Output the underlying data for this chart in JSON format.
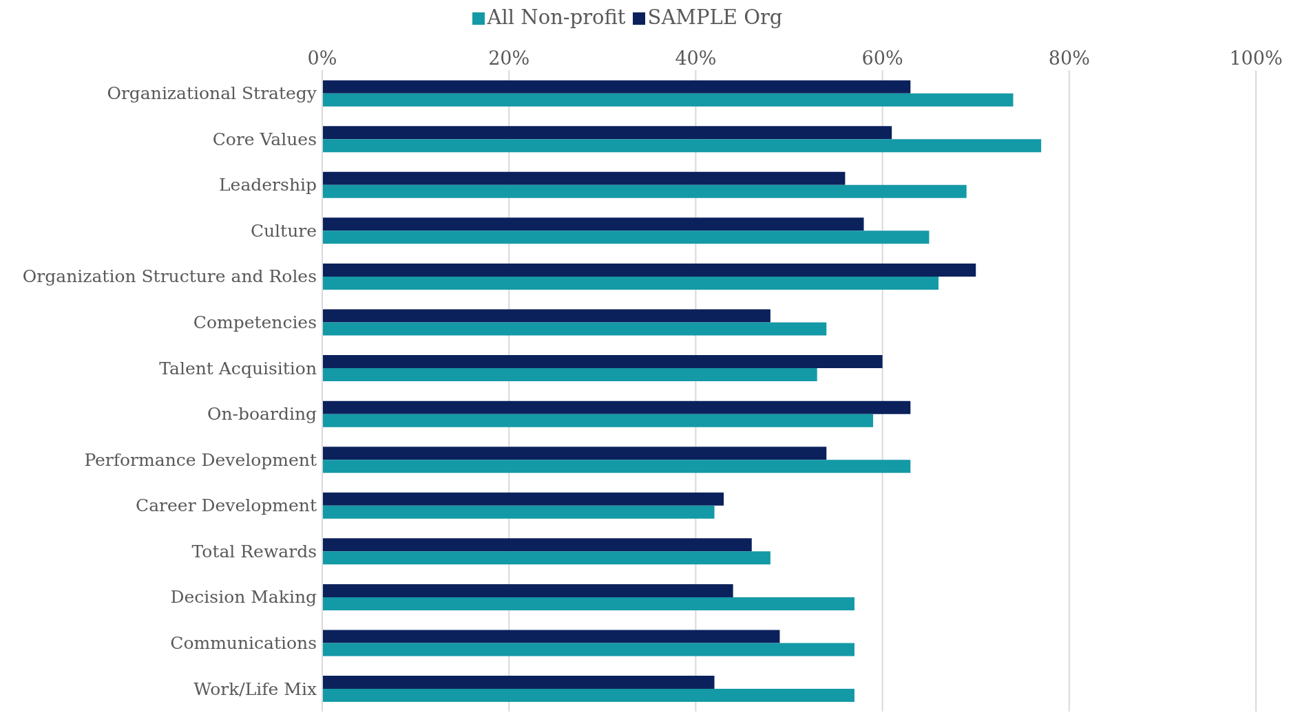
{
  "chart_data": {
    "type": "bar",
    "orientation": "horizontal",
    "categories": [
      "Organizational Strategy",
      "Core Values",
      "Leadership",
      "Culture",
      "Organization Structure and Roles",
      "Competencies",
      "Talent Acquisition",
      "On-boarding",
      "Performance Development",
      "Career Development",
      "Total Rewards",
      "Decision Making",
      "Communications",
      "Work/Life Mix"
    ],
    "series": [
      {
        "name": "SAMPLE Org",
        "color": "#0b215c",
        "values": [
          63,
          61,
          56,
          58,
          70,
          48,
          60,
          63,
          54,
          43,
          46,
          44,
          49,
          42
        ]
      },
      {
        "name": "All Non-profit",
        "color": "#1499a6",
        "values": [
          74,
          77,
          69,
          65,
          66,
          54,
          53,
          59,
          63,
          42,
          48,
          57,
          57,
          57
        ]
      }
    ],
    "xlim": [
      0,
      100
    ],
    "xticks": [
      {
        "value": 0,
        "label": "0%"
      },
      {
        "value": 20,
        "label": "20%"
      },
      {
        "value": 40,
        "label": "40%"
      },
      {
        "value": 60,
        "label": "60%"
      },
      {
        "value": 80,
        "label": "80%"
      },
      {
        "value": 100,
        "label": "100%"
      }
    ],
    "grid": "x",
    "legend": "top"
  }
}
